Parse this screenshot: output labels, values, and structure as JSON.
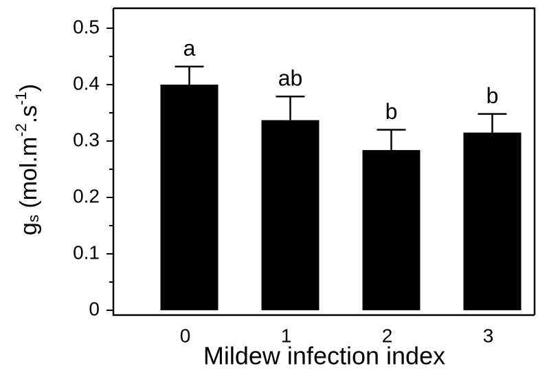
{
  "chart_data": {
    "type": "bar",
    "x_label": "Mildew infection index",
    "y_label_parts": [
      "g",
      "s",
      " (mol.m",
      "-2",
      ".s",
      "-1",
      ")"
    ],
    "categories": [
      "0",
      "1",
      "2",
      "3"
    ],
    "values": [
      0.4,
      0.337,
      0.284,
      0.315
    ],
    "errors": [
      0.032,
      0.042,
      0.036,
      0.033
    ],
    "letters": [
      "a",
      "ab",
      "b",
      "b"
    ],
    "color": "#000000",
    "ylim": [
      0,
      0.5
    ],
    "yticks": [
      0,
      0.1,
      0.2,
      0.3,
      0.4,
      0.5
    ],
    "yminorticks": [
      0.05,
      0.15,
      0.25,
      0.35,
      0.45
    ]
  }
}
